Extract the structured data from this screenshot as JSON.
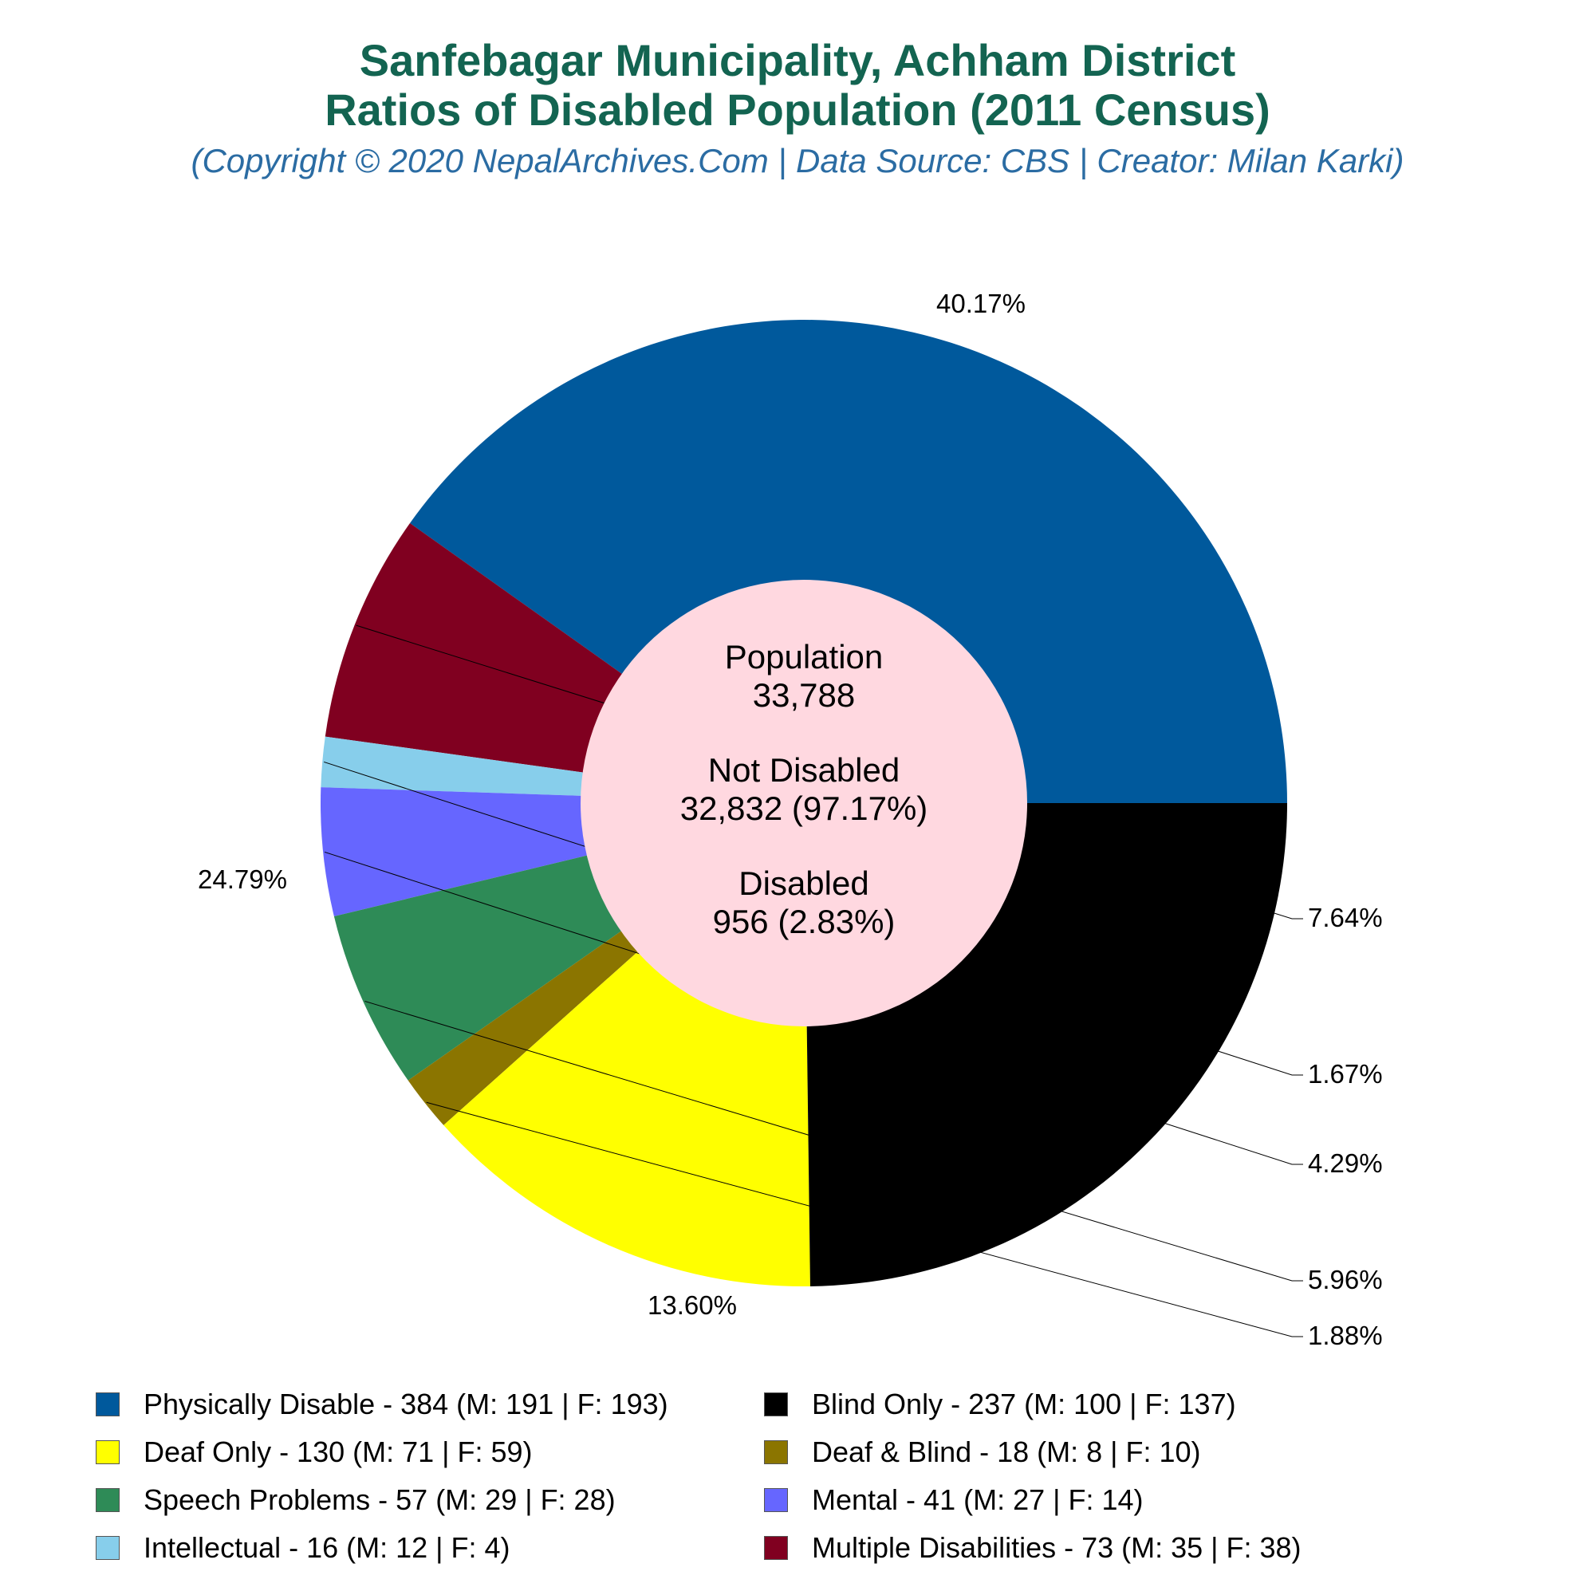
{
  "title_line1": "Sanfebagar Municipality, Achham District",
  "title_line2": "Ratios of Disabled Population (2011 Census)",
  "subtitle": "(Copyright © 2020 NepalArchives.Com | Data Source: CBS | Creator: Milan Karki)",
  "center": {
    "population_label": "Population",
    "population_value": "33,788",
    "not_disabled_label": "Not Disabled",
    "not_disabled_value": "32,832 (97.17%)",
    "disabled_label": "Disabled",
    "disabled_value": "956 (2.83%)"
  },
  "chart_data": {
    "type": "pie",
    "style": "donut",
    "categories": [
      "Physically Disable",
      "Multiple Disabilities",
      "Intellectual",
      "Mental",
      "Speech Problems",
      "Deaf & Blind",
      "Deaf Only",
      "Blind Only"
    ],
    "values": [
      384,
      73,
      16,
      41,
      57,
      18,
      130,
      237
    ],
    "percent_labels": [
      "40.17%",
      "7.64%",
      "1.67%",
      "4.29%",
      "5.96%",
      "1.88%",
      "13.60%",
      "24.79%"
    ],
    "colors": [
      "#00599c",
      "#800020",
      "#87ceeb",
      "#6666ff",
      "#2e8b57",
      "#8b7500",
      "#ffff00",
      "#000000"
    ],
    "center_color": "#ffd8e0",
    "start": "3 o'clock",
    "direction": "clockwise"
  },
  "legend": [
    {
      "label": "Physically Disable - 384 (M: 191 | F: 193)",
      "color": "#00599c"
    },
    {
      "label": "Blind Only - 237 (M: 100 | F: 137)",
      "color": "#000000"
    },
    {
      "label": "Deaf Only - 130 (M: 71 | F: 59)",
      "color": "#ffff00"
    },
    {
      "label": "Deaf & Blind - 18 (M: 8 | F: 10)",
      "color": "#8b7500"
    },
    {
      "label": "Speech Problems - 57 (M: 29 | F: 28)",
      "color": "#2e8b57"
    },
    {
      "label": "Mental - 41 (M: 27 | F: 14)",
      "color": "#6666ff"
    },
    {
      "label": "Intellectual - 16 (M: 12 | F: 4)",
      "color": "#87ceeb"
    },
    {
      "label": "Multiple Disabilities - 73 (M: 35 | F: 38)",
      "color": "#800020"
    }
  ]
}
